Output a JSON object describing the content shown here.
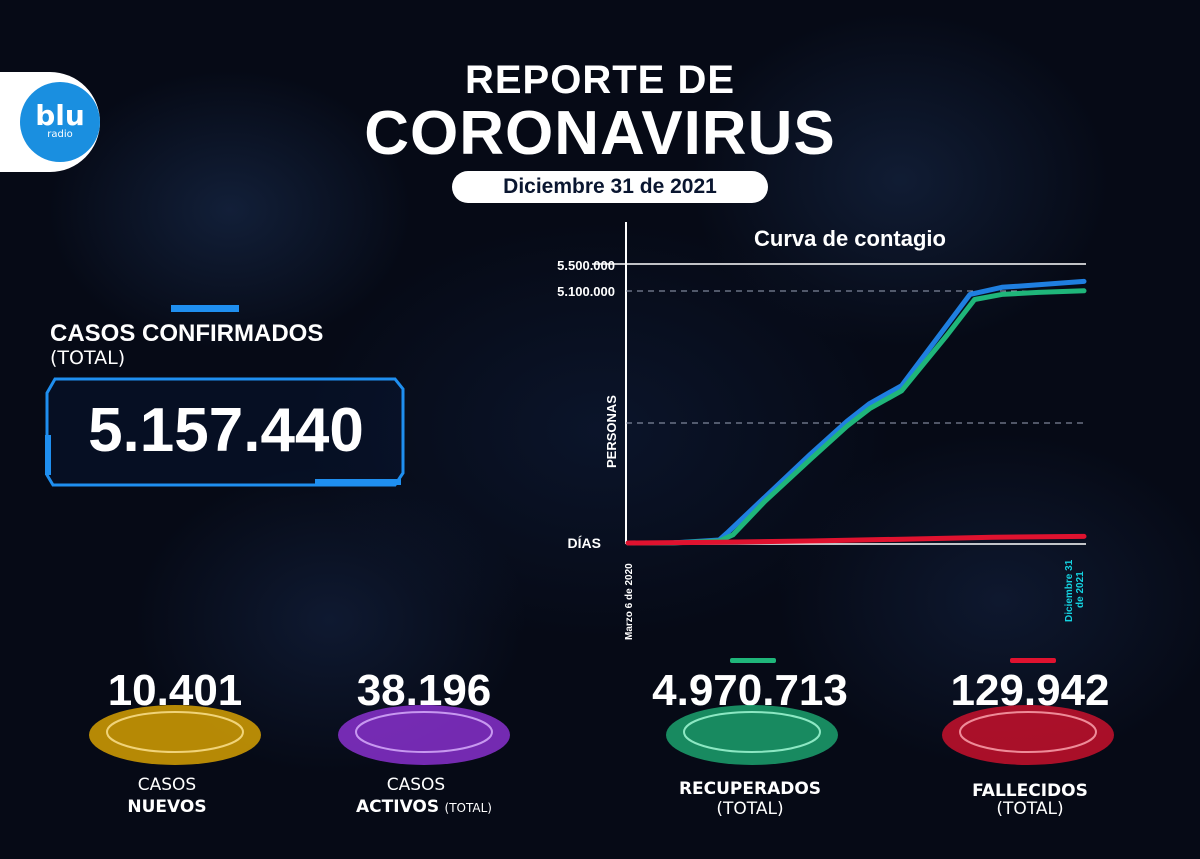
{
  "header": {
    "logo_text": "blu",
    "logo_sub": "radio",
    "title_line1": "REPORTE DE",
    "title_line2": "CORONAVIRUS",
    "date": "Diciembre 31 de 2021"
  },
  "confirmed": {
    "label": "CASOS CONFIRMADOS",
    "sublabel": "(TOTAL)",
    "value": "5.157.440"
  },
  "stats": [
    {
      "value": "10.401",
      "label_line1": "CASOS",
      "label_line2": "NUEVOS",
      "label_suffix": "",
      "color": "#f2b400"
    },
    {
      "value": "38.196",
      "label_line1": "CASOS",
      "label_line2": "ACTIVOS",
      "label_suffix": "(TOTAL)",
      "color": "#9a35e6"
    },
    {
      "value": "4.970.713",
      "label_line1": "RECUPERADOS",
      "label_line2": "(TOTAL)",
      "label_suffix": "",
      "color": "#1fb67a"
    },
    {
      "value": "129.942",
      "label_line1": "FALLECIDOS",
      "label_line2": "(TOTAL)",
      "label_suffix": "",
      "color": "#e0122f"
    }
  ],
  "chart_data": {
    "type": "line",
    "title": "Curva de contagio",
    "ylabel": "PERSONAS",
    "xlabel": "DÍAS",
    "x_start_label": "Marzo 6 de 2020",
    "x_end_label": "Diciembre 31 de 2021",
    "y_ticks": [
      "5.500.000",
      "5.100.000"
    ],
    "ylim": [
      0,
      5500000
    ],
    "grid": "dashed at 5.100.000 and mid",
    "series": [
      {
        "name": "confirmados",
        "color": "#1f7fe0",
        "x": [
          0,
          0.1,
          0.2,
          0.22,
          0.3,
          0.4,
          0.48,
          0.53,
          0.6,
          0.7,
          0.75,
          0.82,
          0.9,
          1.0
        ],
        "values": [
          0,
          2000,
          60000,
          220000,
          900000,
          1750000,
          2400000,
          2750000,
          3100000,
          4300000,
          4900000,
          5040000,
          5090000,
          5157440
        ]
      },
      {
        "name": "recuperados",
        "color": "#1fb67a",
        "x": [
          0,
          0.1,
          0.2,
          0.23,
          0.3,
          0.4,
          0.48,
          0.53,
          0.6,
          0.7,
          0.76,
          0.82,
          0.9,
          1.0
        ],
        "values": [
          0,
          1000,
          40000,
          160000,
          820000,
          1650000,
          2300000,
          2650000,
          3000000,
          4100000,
          4800000,
          4900000,
          4940000,
          4970713
        ]
      },
      {
        "name": "fallecidos",
        "color": "#e0122f",
        "x": [
          0,
          0.2,
          0.4,
          0.6,
          0.8,
          1.0
        ],
        "values": [
          0,
          15000,
          40000,
          75000,
          115000,
          129942
        ]
      }
    ]
  }
}
